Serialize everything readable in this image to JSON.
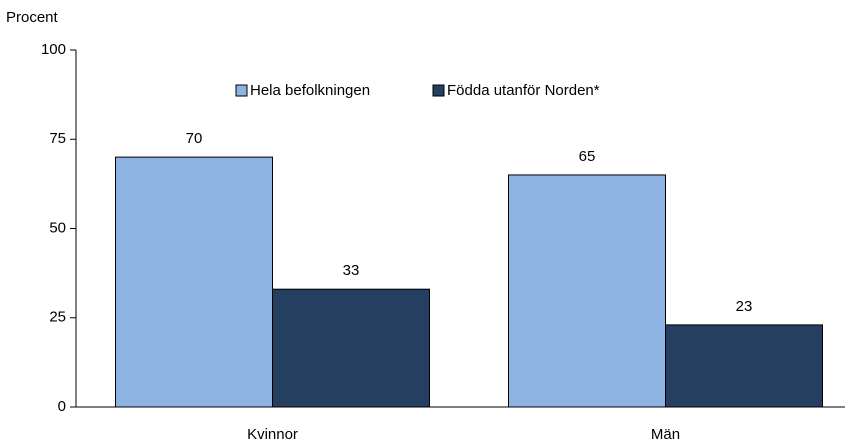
{
  "chart_data": {
    "type": "bar",
    "y_axis_label": "Procent",
    "categories": [
      "Kvinnor",
      "Män"
    ],
    "series": [
      {
        "name": "Hela befolkningen",
        "color": "#8db3e2",
        "values": [
          70,
          65
        ]
      },
      {
        "name": "Födda utanför Norden*",
        "color": "#253f60",
        "values": [
          33,
          23
        ]
      }
    ],
    "ylim": [
      0,
      100
    ],
    "yticks": [
      0,
      25,
      50,
      75,
      100
    ],
    "grid": false,
    "legend": "top"
  }
}
